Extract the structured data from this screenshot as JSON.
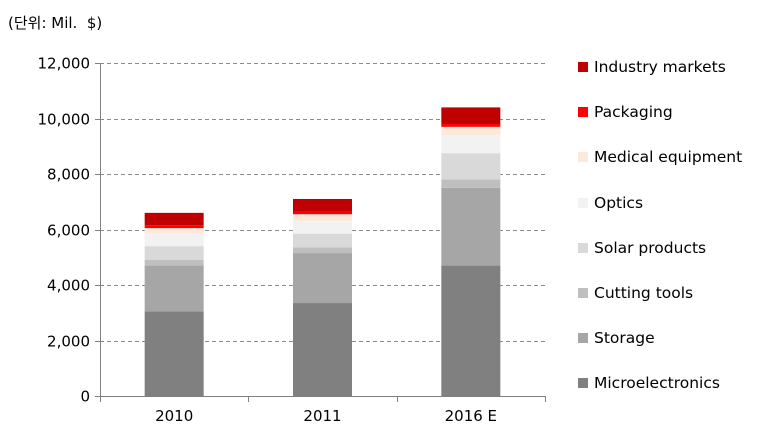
{
  "unit_label": "(단위: Mil.  $)",
  "chart_data": {
    "type": "bar",
    "stacked": true,
    "categories": [
      "2010",
      "2011",
      "2016 E"
    ],
    "ylim": [
      0,
      12000
    ],
    "yticks": [
      "0",
      "2,000",
      "4,000",
      "6,000",
      "8,000",
      "10,000",
      "12,000"
    ],
    "ytick_values": [
      0,
      2000,
      4000,
      6000,
      8000,
      10000,
      12000
    ],
    "grid": "dashed horizontal",
    "legend_position": "right",
    "series": [
      {
        "name": "Microelectronics",
        "color": "#808080",
        "values": [
          3050,
          3350,
          4700
        ]
      },
      {
        "name": "Storage",
        "color": "#a6a6a6",
        "values": [
          1650,
          1800,
          2800
        ]
      },
      {
        "name": "Cutting tools",
        "color": "#bfbfbf",
        "values": [
          200,
          200,
          300
        ]
      },
      {
        "name": "Solar products",
        "color": "#d9d9d9",
        "values": [
          500,
          500,
          950
        ]
      },
      {
        "name": "Optics",
        "color": "#f2f2f2",
        "values": [
          450,
          450,
          650
        ]
      },
      {
        "name": "Medical equipment",
        "color": "#fde9d9",
        "values": [
          200,
          250,
          300
        ]
      },
      {
        "name": "Packaging",
        "color": "#ff0000",
        "values": [
          100,
          100,
          100
        ]
      },
      {
        "name": "Industry markets",
        "color": "#c00000",
        "values": [
          450,
          450,
          600
        ]
      }
    ]
  }
}
